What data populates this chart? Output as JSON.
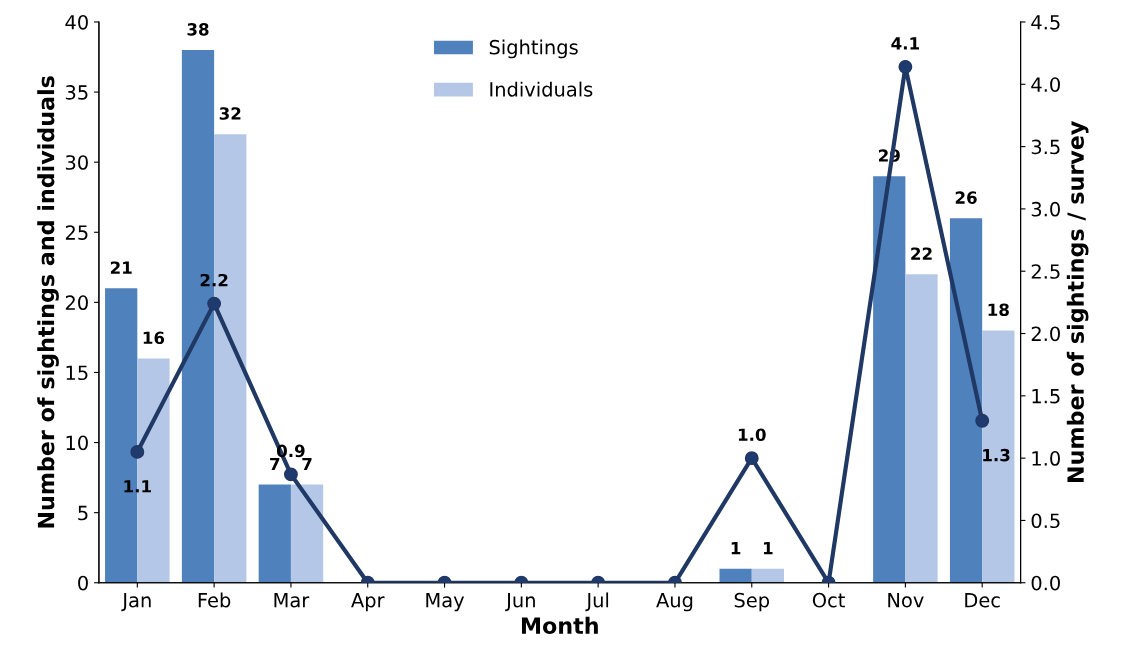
{
  "chart_data": {
    "type": "bar",
    "xlabel": "Month",
    "ylabel": "Number of sightings and individuals",
    "y2label": "Number of sightings / survey",
    "categories": [
      "Jan",
      "Feb",
      "Mar",
      "Apr",
      "May",
      "Jun",
      "Jul",
      "Aug",
      "Sep",
      "Oct",
      "Nov",
      "Dec"
    ],
    "series": [
      {
        "name": "Sightings",
        "color": "#4f81bd",
        "values": [
          21,
          38,
          7,
          0,
          0,
          0,
          0,
          0,
          1,
          0,
          29,
          26
        ],
        "value_labels": [
          "21",
          "38",
          "7",
          null,
          null,
          null,
          null,
          null,
          "1",
          null,
          "29",
          "26"
        ]
      },
      {
        "name": "Individuals",
        "color": "#b4c7e7",
        "values": [
          16,
          32,
          7,
          0,
          0,
          0,
          0,
          0,
          1,
          0,
          22,
          18
        ],
        "value_labels": [
          "16",
          "32",
          "7",
          null,
          null,
          null,
          null,
          null,
          "1",
          null,
          "22",
          "18"
        ]
      },
      {
        "type": "line",
        "axis": "y2",
        "color": "#203864",
        "marker": "circle",
        "line_style": "solid",
        "values": [
          1.05,
          2.24,
          0.87,
          0,
          0,
          0,
          0,
          0,
          1.0,
          0,
          4.14,
          1.3
        ],
        "value_labels": [
          "1.1",
          "2.2",
          "0.9",
          null,
          null,
          null,
          null,
          null,
          "1.0",
          null,
          "4.1",
          "1.3"
        ]
      }
    ],
    "ylim": [
      0,
      40
    ],
    "yticks": [
      0,
      5,
      10,
      15,
      20,
      25,
      30,
      35,
      40
    ],
    "y2lim": [
      0,
      4.5
    ],
    "y2ticks": [
      {
        "value": 0,
        "label": "0.0"
      },
      {
        "value": 0.5,
        "label": "0.5"
      },
      {
        "value": 1,
        "label": "1.0"
      },
      {
        "value": 1.5,
        "label": "1.5"
      },
      {
        "value": 2,
        "label": "2.0"
      },
      {
        "value": 2.5,
        "label": "2.5"
      },
      {
        "value": 3,
        "label": "3.0"
      },
      {
        "value": 3.5,
        "label": "3.5"
      },
      {
        "value": 4,
        "label": "4.0"
      },
      {
        "value": 4.5,
        "label": "4.5"
      }
    ],
    "grid": false,
    "legend": "top"
  }
}
